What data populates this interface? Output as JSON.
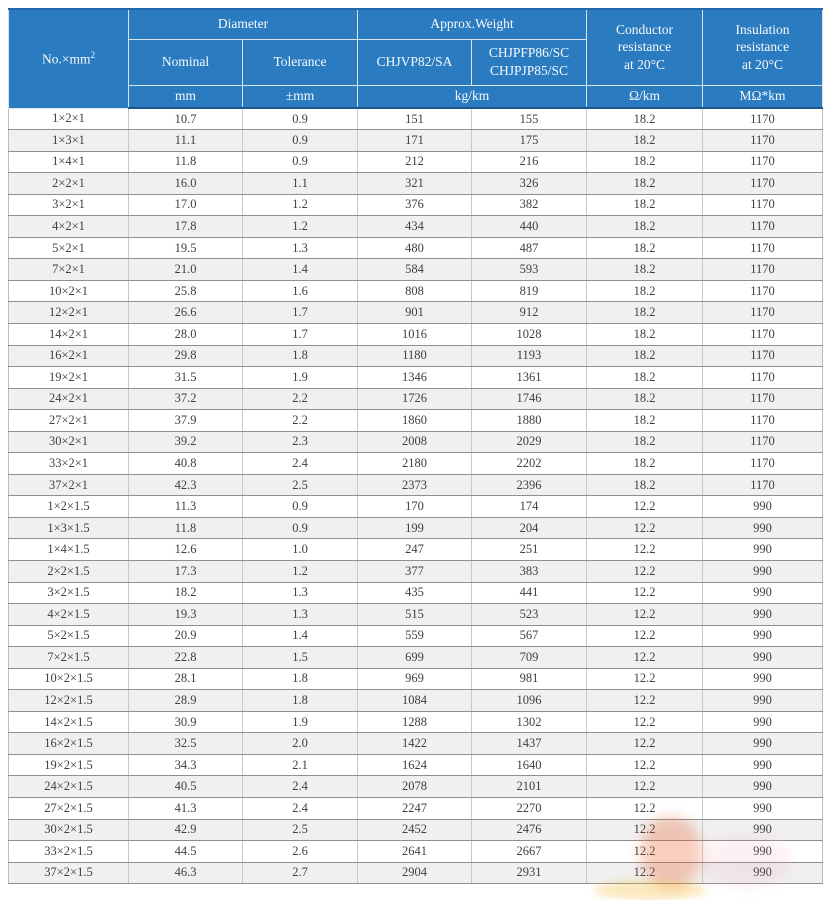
{
  "colors": {
    "header_bg": "#2b7bc0",
    "header_text": "#f6fafd",
    "header_divider": "#d9e3ec",
    "header_edge_dark": "#1b578f",
    "row_alt_bg": "#f0f0f0",
    "row_border": "#8f8f8f",
    "column_border": "#c9c9c9",
    "data_text": "#404040",
    "watermark_orange": "#e8541c",
    "watermark_yellow": "#f0b428",
    "watermark_pink": "#e87a96"
  },
  "table": {
    "header": {
      "col_no_base": "No.×mm",
      "col_no_sup": "2",
      "diameter": "Diameter",
      "nominal": "Nominal",
      "tolerance": "Tolerance",
      "approx_weight": "Approx.Weight",
      "weight_type1": "CHJVP82/SA",
      "weight_type2": "CHJPFP86/SC\nCHJPJP85/SC",
      "conductor_resistance": "Conductor\nresistance\nat 20°C",
      "insulation_resistance": "Insulation\nresistance\nat 20°C",
      "unit_mm": "mm",
      "unit_pmm": "±mm",
      "unit_kgkm": "kg/km",
      "unit_ohmkm": "Ω/km",
      "unit_mohmkm": "MΩ*km"
    },
    "rows": [
      [
        "1×2×1",
        "10.7",
        "0.9",
        "151",
        "155",
        "18.2",
        "1170"
      ],
      [
        "1×3×1",
        "11.1",
        "0.9",
        "171",
        "175",
        "18.2",
        "1170"
      ],
      [
        "1×4×1",
        "11.8",
        "0.9",
        "212",
        "216",
        "18.2",
        "1170"
      ],
      [
        "2×2×1",
        "16.0",
        "1.1",
        "321",
        "326",
        "18.2",
        "1170"
      ],
      [
        "3×2×1",
        "17.0",
        "1.2",
        "376",
        "382",
        "18.2",
        "1170"
      ],
      [
        "4×2×1",
        "17.8",
        "1.2",
        "434",
        "440",
        "18.2",
        "1170"
      ],
      [
        "5×2×1",
        "19.5",
        "1.3",
        "480",
        "487",
        "18.2",
        "1170"
      ],
      [
        "7×2×1",
        "21.0",
        "1.4",
        "584",
        "593",
        "18.2",
        "1170"
      ],
      [
        "10×2×1",
        "25.8",
        "1.6",
        "808",
        "819",
        "18.2",
        "1170"
      ],
      [
        "12×2×1",
        "26.6",
        "1.7",
        "901",
        "912",
        "18.2",
        "1170"
      ],
      [
        "14×2×1",
        "28.0",
        "1.7",
        "1016",
        "1028",
        "18.2",
        "1170"
      ],
      [
        "16×2×1",
        "29.8",
        "1.8",
        "1180",
        "1193",
        "18.2",
        "1170"
      ],
      [
        "19×2×1",
        "31.5",
        "1.9",
        "1346",
        "1361",
        "18.2",
        "1170"
      ],
      [
        "24×2×1",
        "37.2",
        "2.2",
        "1726",
        "1746",
        "18.2",
        "1170"
      ],
      [
        "27×2×1",
        "37.9",
        "2.2",
        "1860",
        "1880",
        "18.2",
        "1170"
      ],
      [
        "30×2×1",
        "39.2",
        "2.3",
        "2008",
        "2029",
        "18.2",
        "1170"
      ],
      [
        "33×2×1",
        "40.8",
        "2.4",
        "2180",
        "2202",
        "18.2",
        "1170"
      ],
      [
        "37×2×1",
        "42.3",
        "2.5",
        "2373",
        "2396",
        "18.2",
        "1170"
      ],
      [
        "1×2×1.5",
        "11.3",
        "0.9",
        "170",
        "174",
        "12.2",
        "990"
      ],
      [
        "1×3×1.5",
        "11.8",
        "0.9",
        "199",
        "204",
        "12.2",
        "990"
      ],
      [
        "1×4×1.5",
        "12.6",
        "1.0",
        "247",
        "251",
        "12.2",
        "990"
      ],
      [
        "2×2×1.5",
        "17.3",
        "1.2",
        "377",
        "383",
        "12.2",
        "990"
      ],
      [
        "3×2×1.5",
        "18.2",
        "1.3",
        "435",
        "441",
        "12.2",
        "990"
      ],
      [
        "4×2×1.5",
        "19.3",
        "1.3",
        "515",
        "523",
        "12.2",
        "990"
      ],
      [
        "5×2×1.5",
        "20.9",
        "1.4",
        "559",
        "567",
        "12.2",
        "990"
      ],
      [
        "7×2×1.5",
        "22.8",
        "1.5",
        "699",
        "709",
        "12.2",
        "990"
      ],
      [
        "10×2×1.5",
        "28.1",
        "1.8",
        "969",
        "981",
        "12.2",
        "990"
      ],
      [
        "12×2×1.5",
        "28.9",
        "1.8",
        "1084",
        "1096",
        "12.2",
        "990"
      ],
      [
        "14×2×1.5",
        "30.9",
        "1.9",
        "1288",
        "1302",
        "12.2",
        "990"
      ],
      [
        "16×2×1.5",
        "32.5",
        "2.0",
        "1422",
        "1437",
        "12.2",
        "990"
      ],
      [
        "19×2×1.5",
        "34.3",
        "2.1",
        "1624",
        "1640",
        "12.2",
        "990"
      ],
      [
        "24×2×1.5",
        "40.5",
        "2.4",
        "2078",
        "2101",
        "12.2",
        "990"
      ],
      [
        "27×2×1.5",
        "41.3",
        "2.4",
        "2247",
        "2270",
        "12.2",
        "990"
      ],
      [
        "30×2×1.5",
        "42.9",
        "2.5",
        "2452",
        "2476",
        "12.2",
        "990"
      ],
      [
        "33×2×1.5",
        "44.5",
        "2.6",
        "2641",
        "2667",
        "12.2",
        "990"
      ],
      [
        "37×2×1.5",
        "46.3",
        "2.7",
        "2904",
        "2931",
        "12.2",
        "990"
      ]
    ]
  }
}
